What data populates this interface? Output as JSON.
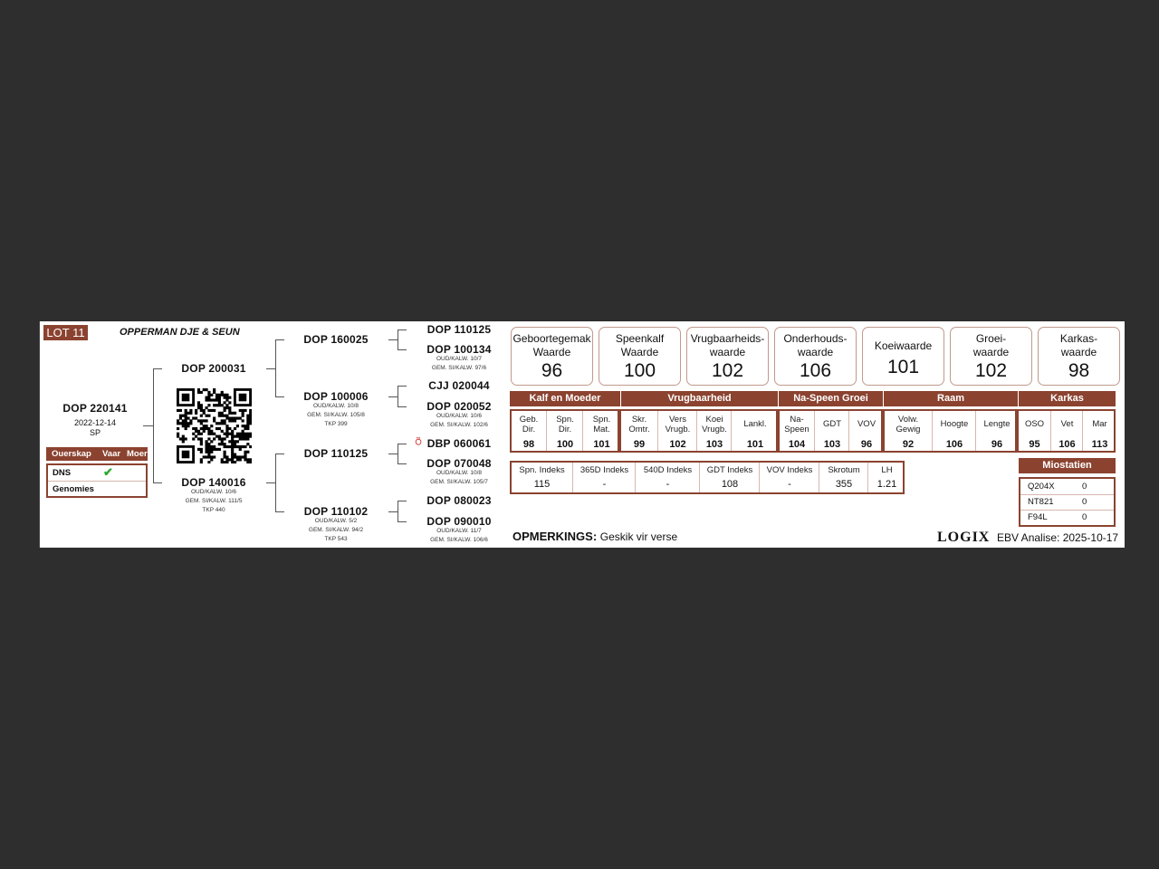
{
  "lot": "LOT 11",
  "breeder": "OPPERMAN DJE & SEUN",
  "animal": {
    "id": "DOP 220141",
    "date": "2022-12-14",
    "code": "SP"
  },
  "parentage": {
    "header": [
      "Ouerskap",
      "Vaar",
      "Moer"
    ],
    "rows": [
      {
        "label": "DNS",
        "vaar": "✔",
        "moer": ""
      },
      {
        "label": "Genomies",
        "vaar": "",
        "moer": ""
      }
    ]
  },
  "pedigree": {
    "sire": {
      "id": "DOP 200031"
    },
    "dam": {
      "id": "DOP 140016",
      "lines": [
        "OUD/KALW. 10/6",
        "GEM. SI/KALW. 111/5",
        "TKP 440"
      ]
    },
    "gen3": [
      {
        "id": "DOP 160025",
        "lines": []
      },
      {
        "id": "DOP 100006",
        "lines": [
          "OUD/KALW. 10/8",
          "GEM. SI/KALW. 105/8",
          "TKP 399"
        ]
      },
      {
        "id": "DOP 110125",
        "lines": []
      },
      {
        "id": "DOP 110102",
        "lines": [
          "OUD/KALW. 5/2",
          "GEM. SI/KALW. 94/2",
          "TKP 543"
        ]
      }
    ],
    "gen4": [
      {
        "id": "DOP 110125",
        "lines": []
      },
      {
        "id": "DOP 100134",
        "lines": [
          "OUD/KALW. 10/7",
          "GEM. SI/KALW. 97/6"
        ]
      },
      {
        "id": "CJJ 020044",
        "lines": []
      },
      {
        "id": "DOP 020052",
        "lines": [
          "OUD/KALW. 10/6",
          "GEM. SI/KALW. 102/6"
        ]
      },
      {
        "id": "DBP 060061",
        "lines": [],
        "icon": "red-sire-emblem-icon"
      },
      {
        "id": "DOP 070048",
        "lines": [
          "OUD/KALW. 10/8",
          "GEM. SI/KALW. 105/7"
        ]
      },
      {
        "id": "DOP 080023",
        "lines": []
      },
      {
        "id": "DOP 090010",
        "lines": [
          "OUD/KALW. 11/7",
          "GEM. SI/KALW. 106/6"
        ]
      }
    ]
  },
  "values": [
    {
      "title": [
        "Geboortegemak",
        "Waarde"
      ],
      "value": "96"
    },
    {
      "title": [
        "Speenkalf",
        "Waarde"
      ],
      "value": "100"
    },
    {
      "title": [
        "Vrugbaarheids-",
        "waarde"
      ],
      "value": "102"
    },
    {
      "title": [
        "Onderhouds-",
        "waarde"
      ],
      "value": "106"
    },
    {
      "title": [
        "Koeiwaarde"
      ],
      "value": "101"
    },
    {
      "title": [
        "Groei-",
        "waarde"
      ],
      "value": "102"
    },
    {
      "title": [
        "Karkas-",
        "waarde"
      ],
      "value": "98"
    }
  ],
  "sections": [
    {
      "name": "Kalf en Moeder",
      "traits": [
        {
          "label": [
            "Geb.",
            "Dir."
          ],
          "value": "98"
        },
        {
          "label": [
            "Spn.",
            "Dir."
          ],
          "value": "100"
        },
        {
          "label": [
            "Spn.",
            "Mat."
          ],
          "value": "101"
        }
      ]
    },
    {
      "name": "Vrugbaarheid",
      "traits": [
        {
          "label": [
            "Skr.",
            "Omtr."
          ],
          "value": "99"
        },
        {
          "label": [
            "Vers",
            "Vrugb."
          ],
          "value": "102"
        },
        {
          "label": [
            "Koei",
            "Vrugb."
          ],
          "value": "103"
        },
        {
          "label": [
            "Lankl."
          ],
          "value": "101"
        }
      ]
    },
    {
      "name": "Na-Speen Groei",
      "traits": [
        {
          "label": [
            "Na-",
            "Speen"
          ],
          "value": "104"
        },
        {
          "label": [
            "GDT"
          ],
          "value": "103"
        },
        {
          "label": [
            "VOV"
          ],
          "value": "96"
        }
      ]
    },
    {
      "name": "Raam",
      "traits": [
        {
          "label": [
            "Volw.",
            "Gewig"
          ],
          "value": "92"
        },
        {
          "label": [
            "Hoogte"
          ],
          "value": "106"
        },
        {
          "label": [
            "Lengte"
          ],
          "value": "96"
        }
      ]
    },
    {
      "name": "Karkas",
      "traits": [
        {
          "label": [
            "OSO"
          ],
          "value": "95"
        },
        {
          "label": [
            "Vet"
          ],
          "value": "106"
        },
        {
          "label": [
            "Mar"
          ],
          "value": "113"
        }
      ]
    }
  ],
  "indexes": [
    {
      "label": "Spn. Indeks",
      "value": "115"
    },
    {
      "label": "365D Indeks",
      "value": "-"
    },
    {
      "label": "540D Indeks",
      "value": "-"
    },
    {
      "label": "GDT Indeks",
      "value": "108"
    },
    {
      "label": "VOV Indeks",
      "value": "-"
    },
    {
      "label": "Skrotum",
      "value": "355"
    },
    {
      "label": "LH",
      "value": "1.21"
    }
  ],
  "myostatin": {
    "title": "Miostatien",
    "rows": [
      {
        "label": "Q204X",
        "value": "0"
      },
      {
        "label": "NT821",
        "value": "0"
      },
      {
        "label": "F94L",
        "value": "0"
      }
    ]
  },
  "remarks": {
    "label": "OPMERKINGS:",
    "text": "Geskik vir verse"
  },
  "logo": "LOGIX",
  "analysis": "EBV Analise: 2025-10-17",
  "colors": {
    "accent": "#8b4330",
    "check": "#2ea82e",
    "background": "#2e2e2e"
  }
}
